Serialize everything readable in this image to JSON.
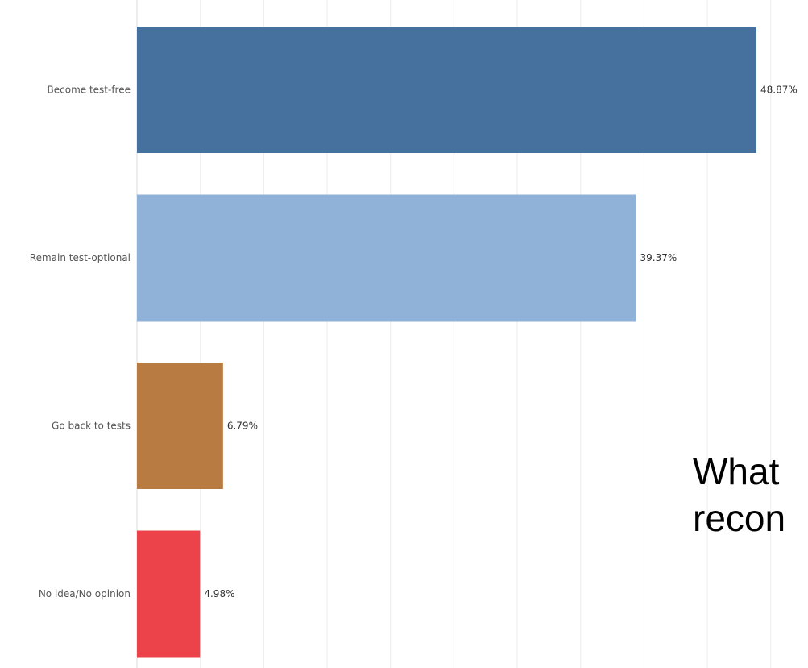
{
  "chart_data": {
    "type": "bar",
    "orientation": "horizontal",
    "categories": [
      "Become test-free",
      "Remain test-optional",
      "Go back to tests",
      "No idea/No opinion"
    ],
    "values": [
      48.87,
      39.37,
      6.79,
      4.98
    ],
    "value_labels": [
      "48.87%",
      "39.37%",
      "6.79%",
      "4.98%"
    ],
    "colors": [
      "#46709e",
      "#91b2d8",
      "#b87c42",
      "#ec434a"
    ],
    "xlim": [
      0,
      50
    ],
    "grid": true,
    "legend": "none"
  },
  "slide_text": "What\nrecon"
}
